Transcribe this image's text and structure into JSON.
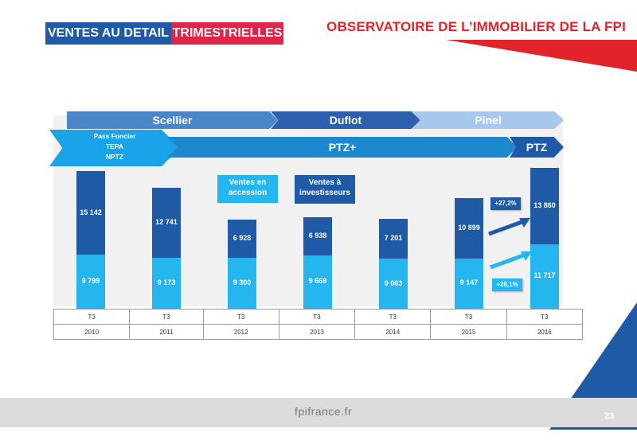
{
  "header": {
    "badge_left": "VENTES AU DETAIL",
    "badge_right": "TRIMESTRIELLES",
    "title": "OBSERVATOIRE DE L’IMMOBILIER DE LA FPI"
  },
  "timeline": {
    "scellier": "Scellier",
    "duflot": "Duflot",
    "pinel": "Pinel",
    "ptz_plus": "PTZ+",
    "ptz": "PTZ",
    "pass_foncier": [
      "Pass Foncier",
      "TEPA",
      "NPTZ"
    ]
  },
  "annotations": {
    "accession": "Ventes en accession",
    "investisseurs": "Ventes à investisseurs",
    "pct_top": "+27,2%",
    "pct_bottom": "+28,1%"
  },
  "chart_data": {
    "type": "bar",
    "stacked": true,
    "categories": [
      "2010",
      "2011",
      "2012",
      "2013",
      "2014",
      "2015",
      "2016"
    ],
    "quarter_label": "T3",
    "series": [
      {
        "name": "Ventes en accession",
        "values": [
          9799,
          9173,
          9300,
          9669,
          9063,
          9147,
          11717
        ],
        "labels": [
          "9 799",
          "9 173",
          "9 300",
          "9 669",
          "9 063",
          "9 147",
          "11 717"
        ]
      },
      {
        "name": "Ventes à investisseurs",
        "values": [
          15142,
          12741,
          6928,
          6938,
          7201,
          10899,
          13860
        ],
        "labels": [
          "15 142",
          "12 741",
          "6 928",
          "6 938",
          "7 201",
          "10 899",
          "13 860"
        ]
      }
    ],
    "colors": {
      "accession": "#25b5ef",
      "investisseurs": "#1f5aa6"
    }
  },
  "colors": {
    "brand_blue": "#1f5aa6",
    "brand_red": "#e0244a",
    "title_red": "#e2232a",
    "light_blue": "#25b5ef"
  },
  "footer": {
    "site": "fpifrance.fr",
    "page": "23"
  }
}
